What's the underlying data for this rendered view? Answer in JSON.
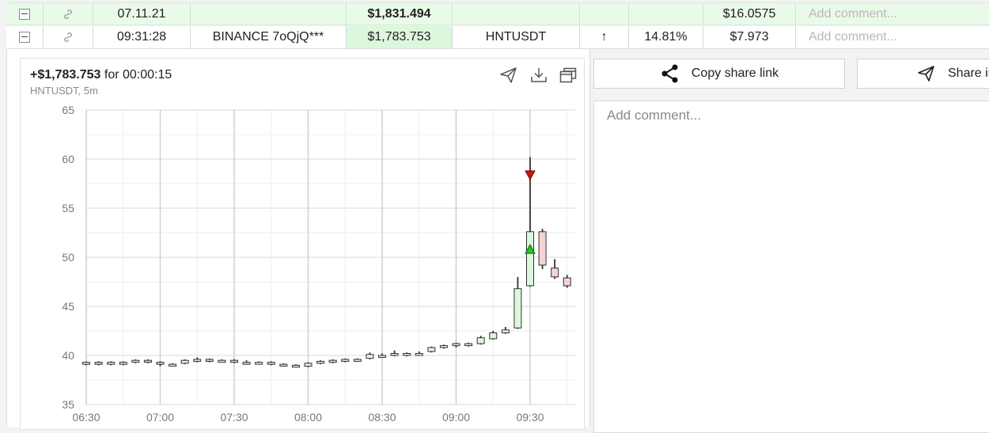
{
  "rows": [
    {
      "expand_symbol": "−",
      "date": "07.11.21",
      "exchange": "",
      "amount": "$1,831.494",
      "pair": "",
      "direction": "",
      "percent": "",
      "price": "$16.0575",
      "comment_placeholder": "Add comment..."
    },
    {
      "expand_symbol": "−",
      "date": "09:31:28",
      "exchange": "BINANCE 7oQjQ***",
      "amount": "$1,783.753",
      "pair": "HNTUSDT",
      "direction": "↑",
      "percent": "14.81%",
      "price": "$7.973",
      "comment_placeholder": "Add comment..."
    }
  ],
  "chart_panel": {
    "profit": "+$1,783.753",
    "duration_text": "for 00:00:15",
    "subtitle": "HNTUSDT, 5m",
    "tools": [
      "send-icon",
      "download-icon",
      "window-restore-icon"
    ]
  },
  "share": {
    "copy_label": "Copy share link",
    "share_in_label": "Share in"
  },
  "comment": {
    "placeholder": "Add comment..."
  },
  "colors": {
    "row_highlight": "#e9fae9",
    "bull_fill": "#dcf7dc",
    "bear_fill": "#f6d3d3",
    "buy_marker": "#2fbf2f",
    "sell_marker": "#cc1111"
  },
  "chart_data": {
    "type": "candlestick",
    "interval": "5m",
    "ylim": [
      35,
      65
    ],
    "yticks": [
      35,
      40,
      45,
      50,
      55,
      60,
      65
    ],
    "xticks": [
      "06:30",
      "07:00",
      "07:30",
      "08:00",
      "08:30",
      "09:00",
      "09:30"
    ],
    "x_start": "06:30",
    "grid": true,
    "candles": [
      {
        "t": "06:30",
        "o": 39.2,
        "h": 39.4,
        "l": 39.0,
        "c": 39.3
      },
      {
        "t": "06:35",
        "o": 39.3,
        "h": 39.4,
        "l": 39.0,
        "c": 39.1
      },
      {
        "t": "06:40",
        "o": 39.1,
        "h": 39.4,
        "l": 39.0,
        "c": 39.3
      },
      {
        "t": "06:45",
        "o": 39.1,
        "h": 39.4,
        "l": 39.0,
        "c": 39.3
      },
      {
        "t": "06:50",
        "o": 39.3,
        "h": 39.6,
        "l": 39.2,
        "c": 39.5
      },
      {
        "t": "06:55",
        "o": 39.5,
        "h": 39.6,
        "l": 39.2,
        "c": 39.3
      },
      {
        "t": "07:00",
        "o": 39.3,
        "h": 39.4,
        "l": 38.9,
        "c": 39.1
      },
      {
        "t": "07:05",
        "o": 39.0,
        "h": 39.2,
        "l": 38.9,
        "c": 39.1
      },
      {
        "t": "07:10",
        "o": 39.2,
        "h": 39.6,
        "l": 39.1,
        "c": 39.5
      },
      {
        "t": "07:15",
        "o": 39.4,
        "h": 39.8,
        "l": 39.3,
        "c": 39.6
      },
      {
        "t": "07:20",
        "o": 39.6,
        "h": 39.7,
        "l": 39.3,
        "c": 39.4
      },
      {
        "t": "07:25",
        "o": 39.4,
        "h": 39.6,
        "l": 39.3,
        "c": 39.5
      },
      {
        "t": "07:30",
        "o": 39.5,
        "h": 39.6,
        "l": 39.2,
        "c": 39.3
      },
      {
        "t": "07:35",
        "o": 39.3,
        "h": 39.5,
        "l": 39.1,
        "c": 39.2
      },
      {
        "t": "07:40",
        "o": 39.2,
        "h": 39.4,
        "l": 39.1,
        "c": 39.3
      },
      {
        "t": "07:45",
        "o": 39.3,
        "h": 39.4,
        "l": 39.0,
        "c": 39.1
      },
      {
        "t": "07:50",
        "o": 39.1,
        "h": 39.2,
        "l": 38.9,
        "c": 39.0
      },
      {
        "t": "07:55",
        "o": 39.0,
        "h": 39.1,
        "l": 38.8,
        "c": 38.9
      },
      {
        "t": "08:00",
        "o": 38.9,
        "h": 39.3,
        "l": 38.8,
        "c": 39.2
      },
      {
        "t": "08:05",
        "o": 39.2,
        "h": 39.5,
        "l": 39.1,
        "c": 39.4
      },
      {
        "t": "08:10",
        "o": 39.3,
        "h": 39.6,
        "l": 39.2,
        "c": 39.5
      },
      {
        "t": "08:15",
        "o": 39.4,
        "h": 39.7,
        "l": 39.3,
        "c": 39.6
      },
      {
        "t": "08:20",
        "o": 39.5,
        "h": 39.7,
        "l": 39.4,
        "c": 39.6
      },
      {
        "t": "08:25",
        "o": 39.7,
        "h": 40.3,
        "l": 39.6,
        "c": 40.1
      },
      {
        "t": "08:30",
        "o": 39.9,
        "h": 40.2,
        "l": 39.8,
        "c": 40.0
      },
      {
        "t": "08:35",
        "o": 40.0,
        "h": 40.5,
        "l": 39.9,
        "c": 40.2
      },
      {
        "t": "08:40",
        "o": 40.0,
        "h": 40.3,
        "l": 39.9,
        "c": 40.2
      },
      {
        "t": "08:45",
        "o": 40.1,
        "h": 40.4,
        "l": 40.0,
        "c": 40.2
      },
      {
        "t": "08:50",
        "o": 40.4,
        "h": 40.9,
        "l": 40.3,
        "c": 40.8
      },
      {
        "t": "08:55",
        "o": 40.8,
        "h": 41.1,
        "l": 40.7,
        "c": 41.0
      },
      {
        "t": "09:00",
        "o": 41.0,
        "h": 41.3,
        "l": 40.8,
        "c": 41.2
      },
      {
        "t": "09:05",
        "o": 41.0,
        "h": 41.3,
        "l": 40.9,
        "c": 41.2
      },
      {
        "t": "09:10",
        "o": 41.2,
        "h": 42.0,
        "l": 41.1,
        "c": 41.8
      },
      {
        "t": "09:15",
        "o": 41.7,
        "h": 42.5,
        "l": 41.6,
        "c": 42.3
      },
      {
        "t": "09:20",
        "o": 42.3,
        "h": 42.9,
        "l": 42.2,
        "c": 42.6
      },
      {
        "t": "09:25",
        "o": 42.8,
        "h": 48.0,
        "l": 42.7,
        "c": 46.8
      },
      {
        "t": "09:30",
        "o": 47.1,
        "h": 60.2,
        "l": 47.0,
        "c": 52.6
      },
      {
        "t": "09:35",
        "o": 52.6,
        "h": 52.9,
        "l": 48.8,
        "c": 49.2
      },
      {
        "t": "09:40",
        "o": 48.9,
        "h": 49.8,
        "l": 47.8,
        "c": 48.0
      },
      {
        "t": "09:45",
        "o": 47.9,
        "h": 48.2,
        "l": 46.9,
        "c": 47.1
      }
    ],
    "markers": [
      {
        "type": "buy",
        "t": "09:30",
        "price": 50.8
      },
      {
        "type": "sell",
        "t": "09:30",
        "price": 58.4
      }
    ]
  }
}
